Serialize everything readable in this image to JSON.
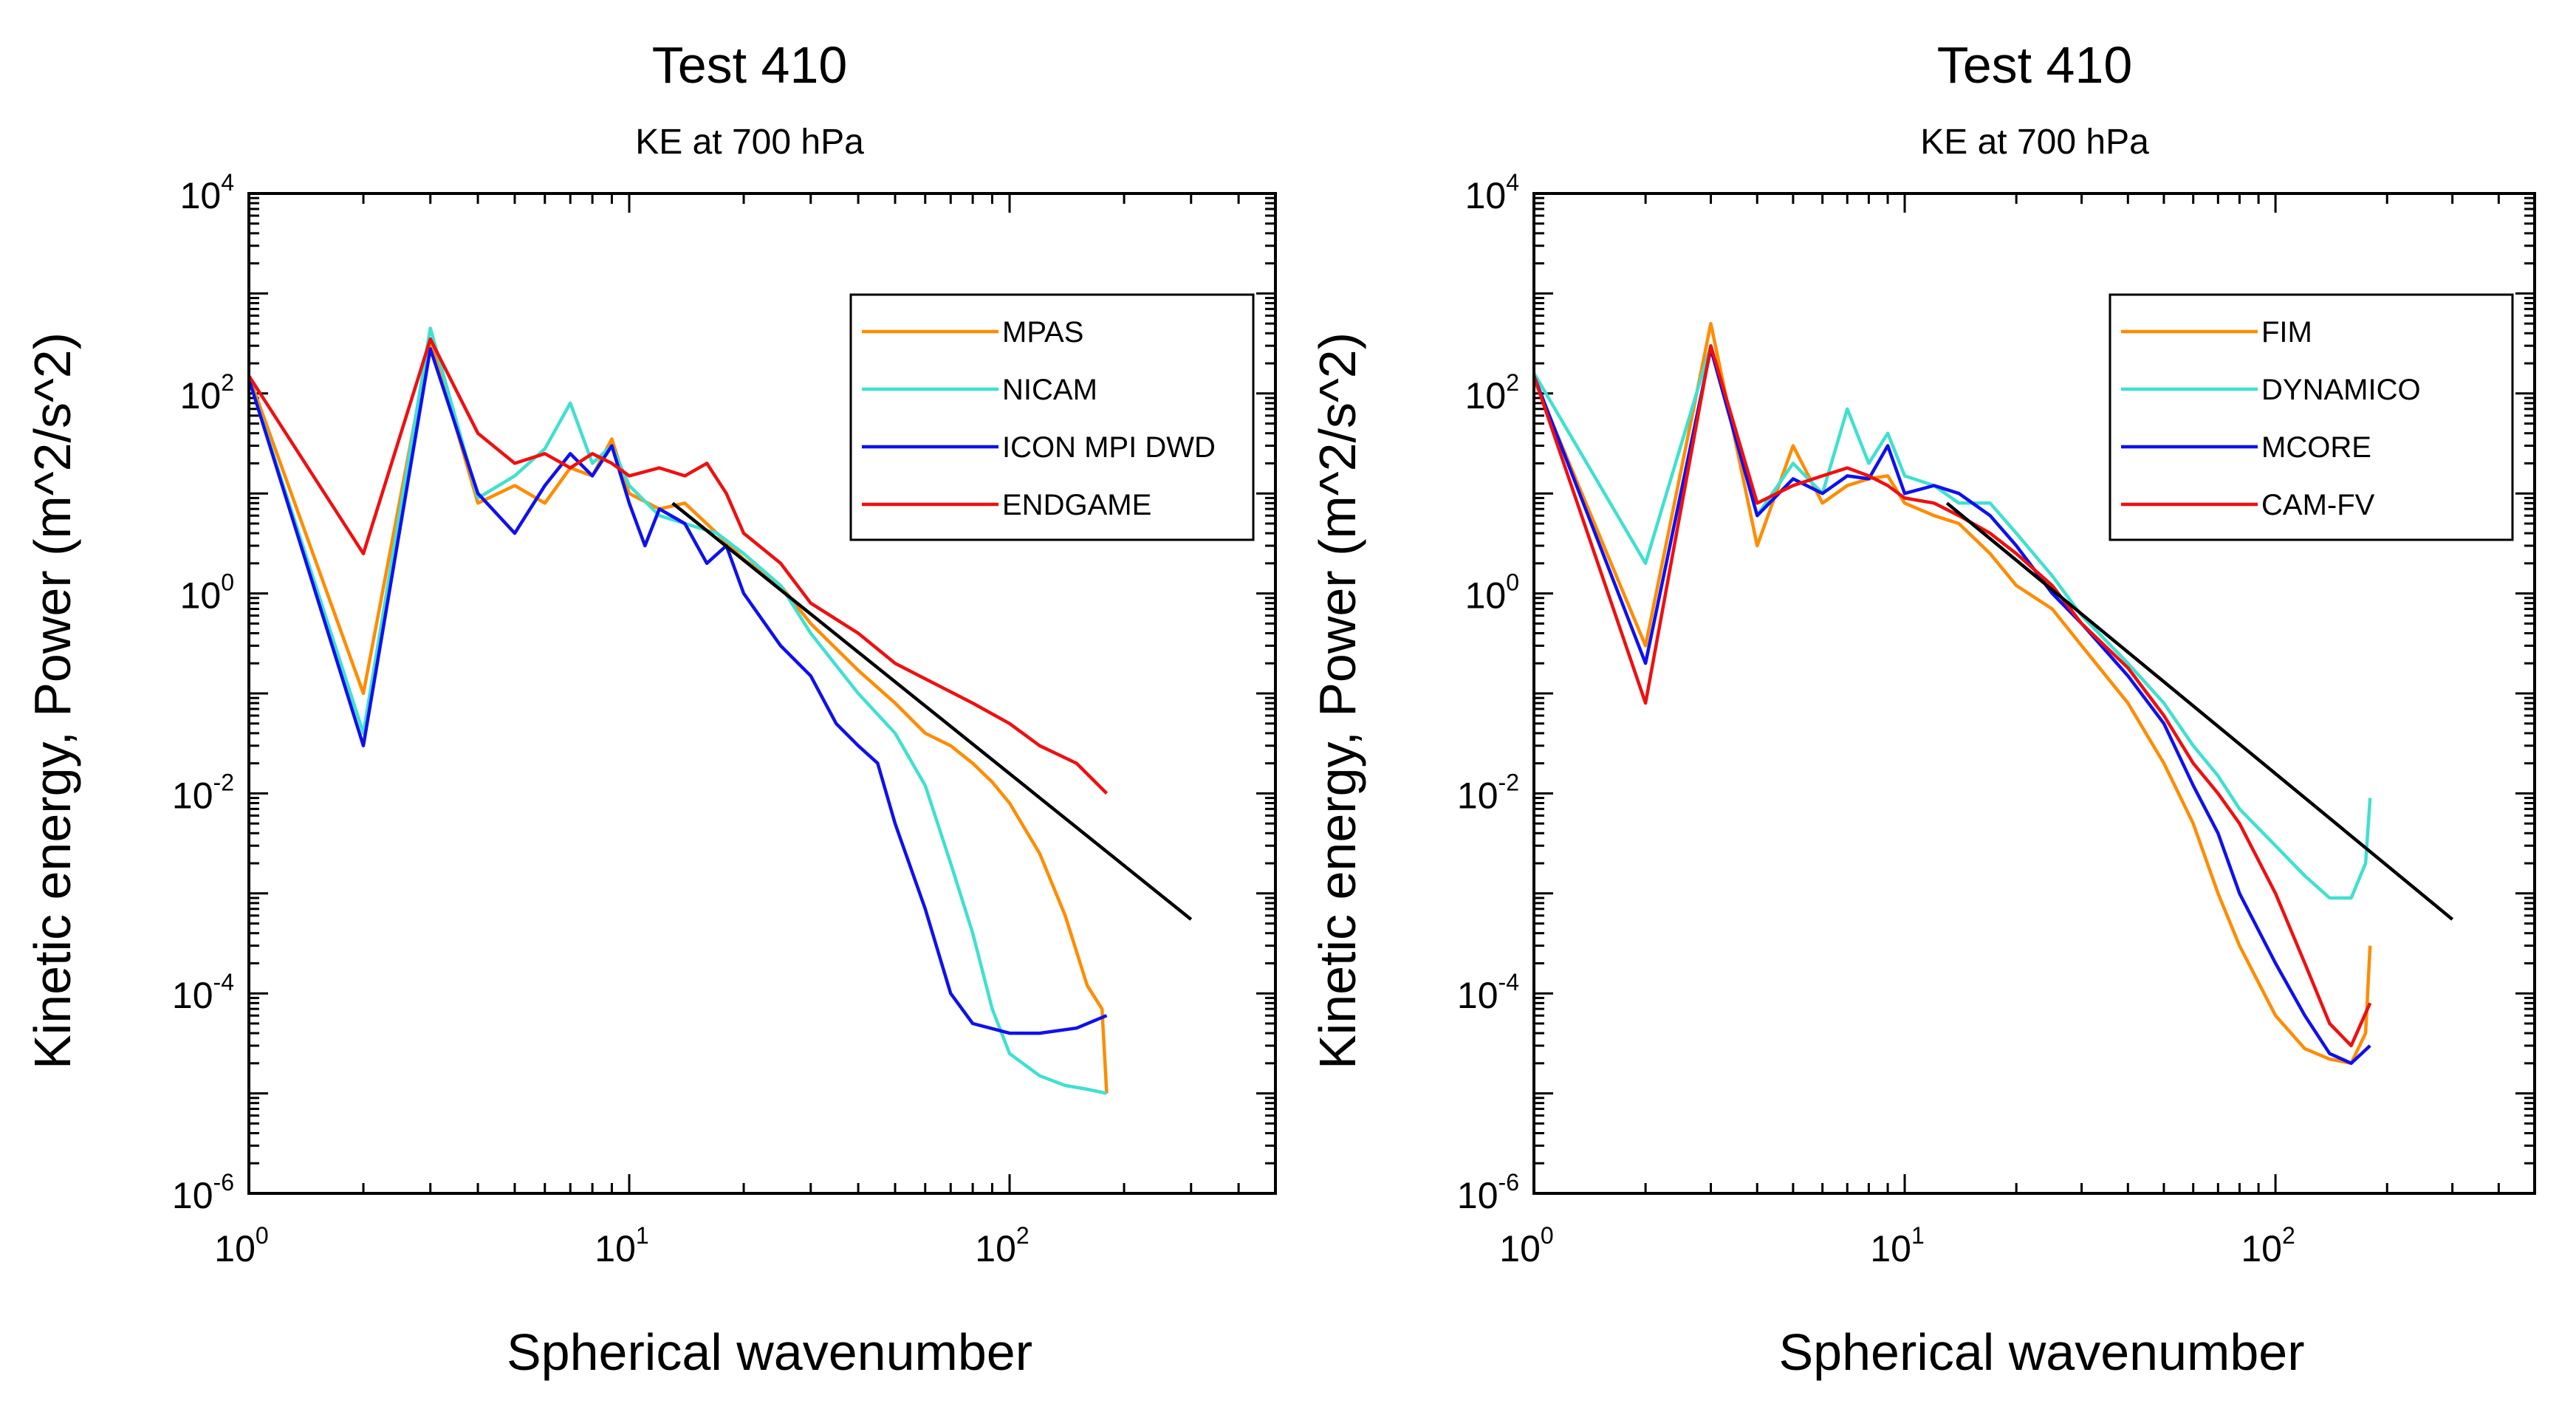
{
  "chart_data": [
    {
      "type": "line",
      "title": "Test 410",
      "subtitle": "KE at 700 hPa",
      "xlabel": "Spherical wavenumber",
      "ylabel": "Kinetic energy, Power (m^2/s^2)",
      "xscale": "log",
      "yscale": "log",
      "xlim": [
        1,
        500
      ],
      "ylim": [
        1e-06,
        10000.0
      ],
      "x_ticks": [
        {
          "base": "10",
          "exp": "0",
          "value": 1
        },
        {
          "base": "10",
          "exp": "1",
          "value": 10
        },
        {
          "base": "10",
          "exp": "2",
          "value": 100
        }
      ],
      "y_ticks": [
        {
          "base": "10",
          "exp": "4",
          "value": 10000
        },
        {
          "base": "10",
          "exp": "2",
          "value": 100
        },
        {
          "base": "10",
          "exp": "0",
          "value": 1
        },
        {
          "base": "10",
          "exp": "-2",
          "value": 0.01
        },
        {
          "base": "10",
          "exp": "-4",
          "value": 0.0001
        },
        {
          "base": "10",
          "exp": "-6",
          "value": 1e-06
        }
      ],
      "legend_position": "top-right",
      "reference_line": {
        "x": [
          13,
          300
        ],
        "y": [
          8.0,
          0.00055
        ],
        "color": "#000000"
      },
      "series": [
        {
          "name": "MPAS",
          "color": "#ff8c00",
          "x": [
            1,
            2,
            3,
            4,
            5,
            6,
            7,
            8,
            9,
            10,
            12,
            14,
            17,
            20,
            25,
            30,
            40,
            50,
            60,
            70,
            80,
            90,
            100,
            120,
            140,
            160,
            175,
            180
          ],
          "y": [
            150,
            0.1,
            350,
            8,
            12,
            8,
            18,
            15,
            35,
            10,
            7,
            8,
            4,
            2.2,
            1.2,
            0.5,
            0.17,
            0.08,
            0.04,
            0.03,
            0.02,
            0.013,
            0.008,
            0.0025,
            0.0006,
            0.00012,
            7e-05,
            1e-05
          ]
        },
        {
          "name": "NICAM",
          "color": "#40e0d0",
          "x": [
            1,
            2,
            3,
            4,
            5,
            6,
            7,
            8,
            9,
            10,
            12,
            14,
            17,
            20,
            25,
            30,
            40,
            50,
            60,
            70,
            80,
            90,
            100,
            120,
            140,
            160,
            180
          ],
          "y": [
            140,
            0.04,
            450,
            9,
            15,
            28,
            80,
            20,
            30,
            12,
            6,
            5,
            4,
            2.5,
            1.2,
            0.4,
            0.1,
            0.04,
            0.012,
            0.002,
            0.0004,
            7e-05,
            2.5e-05,
            1.5e-05,
            1.2e-05,
            1.1e-05,
            1e-05
          ]
        },
        {
          "name": "ICON MPI DWD",
          "color": "#1010ee",
          "x": [
            1,
            2,
            3,
            4,
            5,
            6,
            7,
            8,
            9,
            10,
            11,
            12,
            14,
            16,
            18,
            20,
            25,
            30,
            35,
            40,
            45,
            50,
            60,
            70,
            80,
            100,
            120,
            150,
            180
          ],
          "y": [
            140,
            0.03,
            280,
            10,
            4,
            12,
            25,
            15,
            30,
            8,
            3,
            7,
            5,
            2,
            3,
            1,
            0.3,
            0.15,
            0.05,
            0.03,
            0.02,
            0.005,
            0.0007,
            0.0001,
            5e-05,
            4e-05,
            4e-05,
            4.5e-05,
            6e-05
          ]
        },
        {
          "name": "ENDGAME",
          "color": "#ee1010",
          "x": [
            1,
            2,
            3,
            4,
            5,
            6,
            7,
            8,
            9,
            10,
            12,
            14,
            16,
            18,
            20,
            25,
            30,
            40,
            50,
            60,
            80,
            100,
            120,
            150,
            180
          ],
          "y": [
            150,
            2.5,
            350,
            40,
            20,
            25,
            18,
            25,
            20,
            15,
            18,
            15,
            20,
            10,
            4,
            2,
            0.8,
            0.4,
            0.2,
            0.14,
            0.08,
            0.05,
            0.03,
            0.02,
            0.01
          ]
        }
      ]
    },
    {
      "type": "line",
      "title": "Test 410",
      "subtitle": "KE at 700 hPa",
      "xlabel": "Spherical wavenumber",
      "ylabel": "Kinetic energy, Power (m^2/s^2)",
      "xscale": "log",
      "yscale": "log",
      "xlim": [
        1,
        500
      ],
      "ylim": [
        1e-06,
        10000.0
      ],
      "x_ticks": [
        {
          "base": "10",
          "exp": "0",
          "value": 1
        },
        {
          "base": "10",
          "exp": "1",
          "value": 10
        },
        {
          "base": "10",
          "exp": "2",
          "value": 100
        }
      ],
      "y_ticks": [
        {
          "base": "10",
          "exp": "4",
          "value": 10000
        },
        {
          "base": "10",
          "exp": "2",
          "value": 100
        },
        {
          "base": "10",
          "exp": "0",
          "value": 1
        },
        {
          "base": "10",
          "exp": "-2",
          "value": 0.01
        },
        {
          "base": "10",
          "exp": "-4",
          "value": 0.0001
        },
        {
          "base": "10",
          "exp": "-6",
          "value": 1e-06
        }
      ],
      "legend_position": "top-right",
      "reference_line": {
        "x": [
          13,
          300
        ],
        "y": [
          8.0,
          0.00055
        ],
        "color": "#000000"
      },
      "series": [
        {
          "name": "FIM",
          "color": "#ff8c00",
          "x": [
            1,
            2,
            3,
            4,
            5,
            6,
            7,
            8,
            9,
            10,
            12,
            14,
            17,
            20,
            25,
            30,
            40,
            50,
            60,
            70,
            80,
            100,
            120,
            140,
            160,
            175,
            180
          ],
          "y": [
            140,
            0.3,
            500,
            3,
            30,
            8,
            12,
            14,
            15,
            8,
            6,
            5,
            2.5,
            1.2,
            0.7,
            0.3,
            0.08,
            0.02,
            0.005,
            0.001,
            0.0003,
            6e-05,
            2.8e-05,
            2.2e-05,
            2e-05,
            4e-05,
            0.0003
          ]
        },
        {
          "name": "DYNAMICO",
          "color": "#40e0d0",
          "x": [
            1,
            2,
            3,
            4,
            5,
            6,
            7,
            8,
            9,
            10,
            12,
            14,
            17,
            20,
            25,
            30,
            40,
            50,
            60,
            70,
            80,
            100,
            120,
            140,
            160,
            175,
            180
          ],
          "y": [
            160,
            2,
            300,
            6,
            20,
            10,
            70,
            20,
            40,
            15,
            12,
            8,
            8,
            4,
            1.5,
            0.6,
            0.2,
            0.08,
            0.03,
            0.015,
            0.007,
            0.003,
            0.0015,
            0.0009,
            0.0009,
            0.002,
            0.009
          ]
        },
        {
          "name": "MCORE",
          "color": "#1010ee",
          "x": [
            1,
            2,
            3,
            4,
            5,
            6,
            7,
            8,
            9,
            10,
            12,
            14,
            17,
            20,
            25,
            30,
            40,
            50,
            60,
            70,
            80,
            100,
            120,
            140,
            160,
            180
          ],
          "y": [
            150,
            0.2,
            280,
            6,
            14,
            10,
            15,
            14,
            30,
            10,
            12,
            10,
            6,
            3,
            1,
            0.5,
            0.15,
            0.05,
            0.012,
            0.004,
            0.001,
            0.0002,
            6e-05,
            2.5e-05,
            2e-05,
            3e-05
          ]
        },
        {
          "name": "CAM-FV",
          "color": "#ee1010",
          "x": [
            1,
            2,
            3,
            4,
            5,
            6,
            7,
            8,
            9,
            10,
            12,
            14,
            17,
            20,
            25,
            30,
            40,
            50,
            60,
            70,
            80,
            100,
            120,
            140,
            160,
            180
          ],
          "y": [
            150,
            0.08,
            300,
            8,
            12,
            15,
            18,
            15,
            12,
            9,
            8,
            6,
            4,
            2.5,
            1.2,
            0.5,
            0.18,
            0.06,
            0.02,
            0.01,
            0.005,
            0.001,
            0.0002,
            5e-05,
            3e-05,
            8e-05
          ]
        }
      ]
    }
  ]
}
